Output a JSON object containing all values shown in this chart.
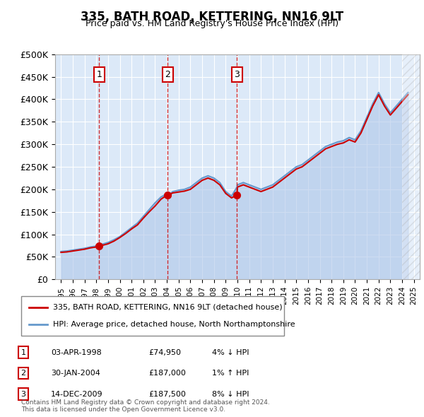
{
  "title": "335, BATH ROAD, KETTERING, NN16 9LT",
  "subtitle": "Price paid vs. HM Land Registry's House Price Index (HPI)",
  "ylabel_ticks": [
    "£0",
    "£50K",
    "£100K",
    "£150K",
    "£200K",
    "£250K",
    "£300K",
    "£350K",
    "£400K",
    "£450K",
    "£500K"
  ],
  "ytick_values": [
    0,
    50000,
    100000,
    150000,
    200000,
    250000,
    300000,
    350000,
    400000,
    450000,
    500000
  ],
  "xlim": [
    1994.5,
    2025.5
  ],
  "ylim": [
    0,
    500000
  ],
  "background_color": "#dce9f8",
  "plot_bg_color": "#dce9f8",
  "hpi_line_color": "#6699cc",
  "price_line_color": "#cc0000",
  "hpi_fill_color": "#aec6e8",
  "sales": [
    {
      "year": 1998.25,
      "price": 74950,
      "label": "1"
    },
    {
      "year": 2004.08,
      "price": 187000,
      "label": "2"
    },
    {
      "year": 2009.96,
      "price": 187500,
      "label": "3"
    }
  ],
  "legend_entries": [
    "335, BATH ROAD, KETTERING, NN16 9LT (detached house)",
    "HPI: Average price, detached house, North Northamptonshire"
  ],
  "table_rows": [
    [
      "1",
      "03-APR-1998",
      "£74,950",
      "4% ↓ HPI"
    ],
    [
      "2",
      "30-JAN-2004",
      "£187,000",
      "1% ↑ HPI"
    ],
    [
      "3",
      "14-DEC-2009",
      "£187,500",
      "8% ↓ HPI"
    ]
  ],
  "footnote": "Contains HM Land Registry data © Crown copyright and database right 2024.\nThis data is licensed under the Open Government Licence v3.0.",
  "hpi_data_x": [
    1995,
    1995.5,
    1996,
    1996.5,
    1997,
    1997.5,
    1998,
    1998.25,
    1998.5,
    1999,
    1999.5,
    2000,
    2000.5,
    2001,
    2001.5,
    2002,
    2002.5,
    2003,
    2003.5,
    2004,
    2004.08,
    2004.5,
    2005,
    2005.5,
    2006,
    2006.5,
    2007,
    2007.5,
    2008,
    2008.5,
    2009,
    2009.5,
    2009.96,
    2010,
    2010.5,
    2011,
    2011.5,
    2012,
    2012.5,
    2013,
    2013.5,
    2014,
    2014.5,
    2015,
    2015.5,
    2016,
    2016.5,
    2017,
    2017.5,
    2018,
    2018.5,
    2019,
    2019.5,
    2020,
    2020.5,
    2021,
    2021.5,
    2022,
    2022.5,
    2023,
    2023.5,
    2024,
    2024.5
  ],
  "hpi_data_y": [
    62000,
    63000,
    65000,
    67000,
    69000,
    72000,
    74000,
    77950,
    78000,
    82000,
    88000,
    95000,
    105000,
    115000,
    125000,
    140000,
    155000,
    170000,
    183000,
    190000,
    185000,
    195000,
    198000,
    200000,
    205000,
    215000,
    225000,
    230000,
    225000,
    215000,
    195000,
    185000,
    205000,
    210000,
    215000,
    210000,
    205000,
    200000,
    205000,
    210000,
    220000,
    230000,
    240000,
    250000,
    255000,
    265000,
    275000,
    285000,
    295000,
    300000,
    305000,
    308000,
    315000,
    310000,
    330000,
    360000,
    390000,
    415000,
    390000,
    370000,
    385000,
    400000,
    415000
  ],
  "price_data_x": [
    1995,
    1995.5,
    1996,
    1996.5,
    1997,
    1997.5,
    1998,
    1998.25,
    1998.5,
    1999,
    1999.5,
    2000,
    2000.5,
    2001,
    2001.5,
    2002,
    2002.5,
    2003,
    2003.5,
    2004,
    2004.08,
    2004.5,
    2005,
    2005.5,
    2006,
    2006.5,
    2007,
    2007.5,
    2008,
    2008.5,
    2009,
    2009.5,
    2009.96,
    2010,
    2010.5,
    2011,
    2011.5,
    2012,
    2012.5,
    2013,
    2013.5,
    2014,
    2014.5,
    2015,
    2015.5,
    2016,
    2016.5,
    2017,
    2017.5,
    2018,
    2018.5,
    2019,
    2019.5,
    2020,
    2020.5,
    2021,
    2021.5,
    2022,
    2022.5,
    2023,
    2023.5,
    2024,
    2024.5
  ],
  "price_data_y": [
    60000,
    61000,
    63000,
    65000,
    67000,
    70000,
    72000,
    74950,
    75500,
    79000,
    85000,
    93000,
    102000,
    112000,
    121000,
    136000,
    150000,
    163000,
    178000,
    187000,
    187000,
    192000,
    194000,
    196000,
    200000,
    210000,
    220000,
    225000,
    220000,
    210000,
    191000,
    181000,
    187500,
    205000,
    210000,
    205000,
    200000,
    195000,
    200000,
    205000,
    215000,
    225000,
    235000,
    245000,
    250000,
    260000,
    270000,
    280000,
    290000,
    295000,
    300000,
    303000,
    310000,
    305000,
    325000,
    355000,
    385000,
    410000,
    385000,
    365000,
    380000,
    395000,
    410000
  ]
}
